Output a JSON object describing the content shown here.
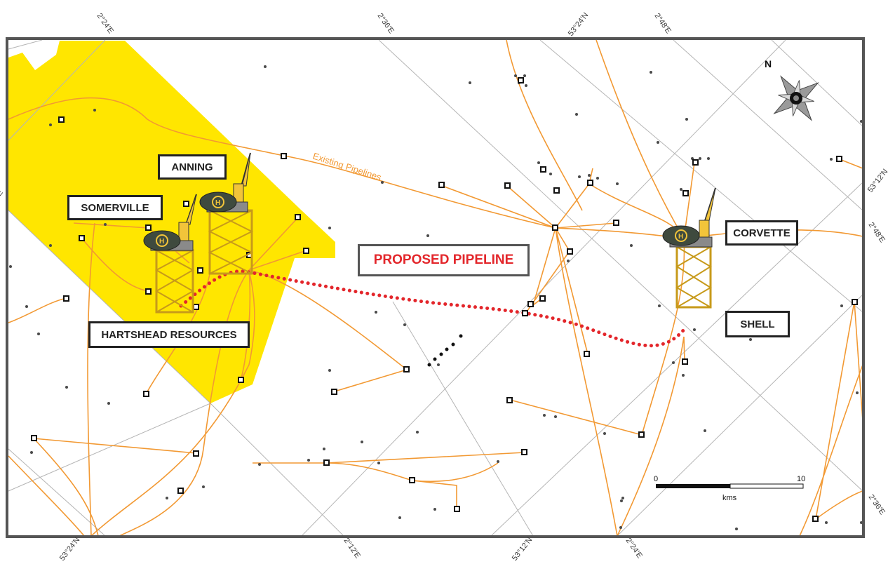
{
  "map": {
    "labels": {
      "anning": "ANNING",
      "somerville": "SOMERVILLE",
      "hartshead": "HARTSHEAD RESOURCES",
      "corvette": "CORVETTE",
      "shell": "SHELL"
    },
    "proposed_pipeline": "PROPOSED PIPELINE",
    "existing_pipelines": "Existing Pipelines",
    "north": "N",
    "scale": {
      "start": "0",
      "end": "10",
      "unit": "kms"
    },
    "coordinates": {
      "top": [
        "2°24'E",
        "2°36'E",
        "53°24'N",
        "2°48'E"
      ],
      "bottom": [
        "53°24'N",
        "2°12'E",
        "53°12'N",
        "2°24'E"
      ],
      "right": [
        "53°12'N",
        "2°48'E",
        "2°36'E"
      ],
      "left": [
        "E"
      ]
    },
    "colors": {
      "licence_block": "#ffe600",
      "pipelines": "#f29933",
      "proposed": "#e3262b",
      "grid": "#b5b5b5",
      "frame": "#555555"
    }
  }
}
